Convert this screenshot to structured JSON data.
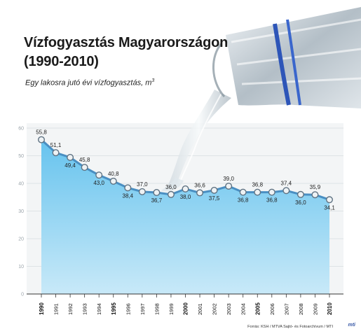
{
  "title_line1": "Vízfogyasztás Magyarországon",
  "title_line2": "(1990-2010)",
  "subtitle": "Egy lakosra jutó évi vízfogyasztás, m",
  "subtitle_sup": "3",
  "source": "Forrás: KSH / MTVA Sajtó- és Fotoarchívum / MTI",
  "logo": "mti",
  "colors": {
    "area_fill_top": "#66c3ee",
    "area_fill_bottom": "#c8e9f8",
    "line": "#4a8fc2",
    "marker_fill": "#eef2f4",
    "marker_stroke": "#5f7282"
  },
  "chart_data": {
    "type": "area",
    "title": "Vízfogyasztás Magyarországon (1990-2010)",
    "ylabel": "Egy lakosra jutó évi vízfogyasztás, m3",
    "xlabel": "",
    "ylim": [
      0,
      60
    ],
    "yticks": [
      "0",
      "10",
      "20",
      "30",
      "40",
      "50",
      "60"
    ],
    "grid": true,
    "x": [
      "1990",
      "1991",
      "1992",
      "1993",
      "1994",
      "1995",
      "1996",
      "1997",
      "1998",
      "1999",
      "2000",
      "2001",
      "2002",
      "2003",
      "2004",
      "2005",
      "2006",
      "2007",
      "2008",
      "2009",
      "2010"
    ],
    "bold_x": [
      "1990",
      "1995",
      "2000",
      "2005",
      "2010"
    ],
    "values": [
      55.8,
      51.1,
      49.4,
      45.8,
      43.0,
      40.8,
      38.4,
      37.0,
      36.7,
      36.0,
      38.0,
      36.6,
      37.5,
      39.0,
      36.8,
      36.8,
      36.8,
      37.4,
      36.0,
      35.9,
      34.1
    ],
    "value_labels": [
      "55,8",
      "51,1",
      "49,4",
      "45,8",
      "43,0",
      "40,8",
      "38,4",
      "37,0",
      "36,7",
      "36,0",
      "38,0",
      "36,6",
      "37,5",
      "39,0",
      "36,8",
      "36,8",
      "36,8",
      "37,4",
      "36,0",
      "35,9",
      "34,1"
    ],
    "label_positions": [
      "above",
      "above",
      "below",
      "above",
      "below",
      "above",
      "below",
      "above",
      "below",
      "above",
      "below",
      "above",
      "below",
      "above",
      "below",
      "above",
      "below",
      "above",
      "below",
      "above",
      "below"
    ]
  }
}
